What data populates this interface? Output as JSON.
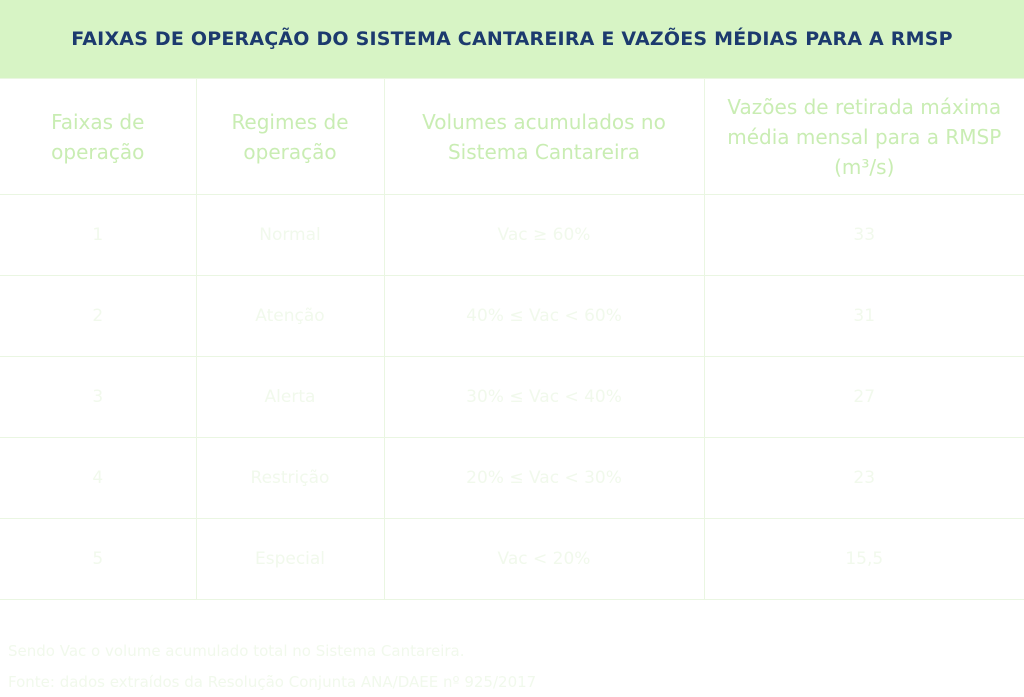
{
  "header": {
    "title": "FAIXAS DE OPERAÇÃO DO SISTEMA CANTAREIRA E VAZÕES MÉDIAS PARA A RMSP"
  },
  "table": {
    "columns": [
      "Faixas de operação",
      "Regimes de operação",
      "Volumes acumulados no Sistema Cantareira",
      "Vazões de retirada máxima média mensal para a RMSP (m³/s)"
    ],
    "rows": [
      [
        "1",
        "Normal",
        "Vac ≥ 60%",
        "33"
      ],
      [
        "2",
        "Atenção",
        "40% ≤ Vac < 60%",
        "31"
      ],
      [
        "3",
        "Alerta",
        "30% ≤ Vac < 40%",
        "27"
      ],
      [
        "4",
        "Restrição",
        "20% ≤ Vac < 30%",
        "23"
      ],
      [
        "5",
        "Especial",
        "Vac < 20%",
        "15,5"
      ]
    ]
  },
  "notes": [
    "Sendo Vac o volume acumulado total no Sistema Cantareira.",
    "Fonte: dados extraídos da Resolução Conjunta ANA/DAEE nº 925/2017"
  ]
}
